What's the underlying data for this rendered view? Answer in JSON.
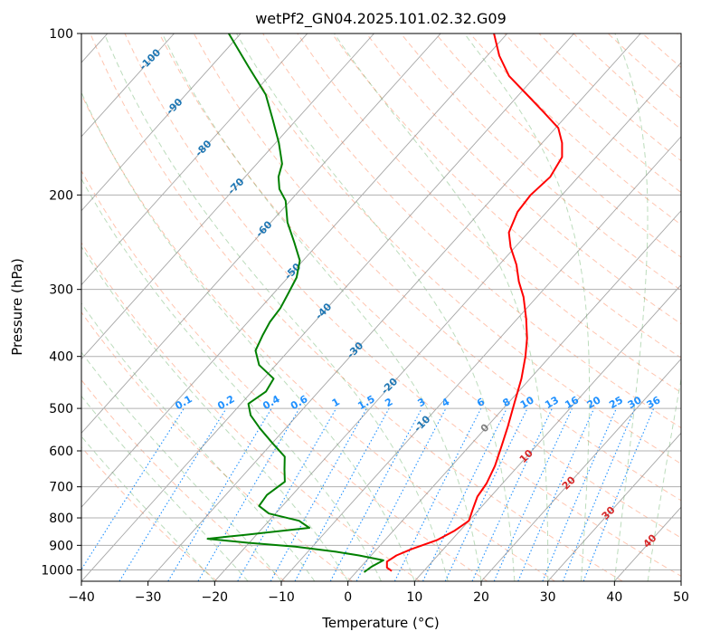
{
  "chart_data": {
    "type": "line",
    "subtype": "skew-t log-p",
    "title": "wetPf2_GN04.2025.101.02.32.G09",
    "xlabel": "Temperature (°C)",
    "ylabel": "Pressure (hPa)",
    "xlim": [
      -40,
      50
    ],
    "ylim": [
      1050,
      100
    ],
    "y_scale": "log",
    "grid": true,
    "x_ticks": [
      "−40",
      "−30",
      "−20",
      "−10",
      "0",
      "10",
      "20",
      "30",
      "40",
      "50"
    ],
    "y_ticks": [
      "100",
      "200",
      "300",
      "400",
      "500",
      "600",
      "700",
      "800",
      "900",
      "1000"
    ],
    "x_tick_values": [
      -40,
      -30,
      -20,
      -10,
      0,
      10,
      20,
      30,
      40,
      50
    ],
    "y_tick_values": [
      100,
      200,
      300,
      400,
      500,
      600,
      700,
      800,
      900,
      1000
    ],
    "colors": {
      "temperature": "#ff0000",
      "dewpoint": "#008000",
      "dry_adiabat": "#ff7f50",
      "moist_adiabat": "#228b22",
      "mixing_ratio": "#1e90ff",
      "isotherm": "#808080",
      "isotherm_label_cold": "#1f77b4",
      "isotherm_label_warm": "#d62728",
      "zero_isotherm_label": "#7f7f7f",
      "mixing_label": "#1e90ff"
    },
    "series": [
      {
        "key": "temperature",
        "points": [
          [
            1005,
            5.2
          ],
          [
            990,
            4.0
          ],
          [
            965,
            3.2
          ],
          [
            940,
            3.8
          ],
          [
            915,
            5.2
          ],
          [
            880,
            7.8
          ],
          [
            845,
            9.2
          ],
          [
            810,
            10.0
          ],
          [
            770,
            9.0
          ],
          [
            730,
            8.0
          ],
          [
            690,
            7.6
          ],
          [
            640,
            6.5
          ],
          [
            590,
            4.9
          ],
          [
            540,
            3.1
          ],
          [
            490,
            1.0
          ],
          [
            440,
            -1.3
          ],
          [
            400,
            -3.7
          ],
          [
            370,
            -5.9
          ],
          [
            340,
            -8.7
          ],
          [
            310,
            -12.0
          ],
          [
            290,
            -14.8
          ],
          [
            270,
            -17.4
          ],
          [
            250,
            -20.7
          ],
          [
            235,
            -22.9
          ],
          [
            215,
            -24.4
          ],
          [
            200,
            -24.7
          ],
          [
            185,
            -24.2
          ],
          [
            170,
            -25.1
          ],
          [
            160,
            -27.0
          ],
          [
            150,
            -29.6
          ],
          [
            140,
            -34.0
          ],
          [
            130,
            -38.8
          ],
          [
            120,
            -44.0
          ],
          [
            110,
            -48.2
          ],
          [
            100,
            -52.0
          ]
        ]
      },
      {
        "key": "dewpoint",
        "points": [
          [
            1010,
            1.2
          ],
          [
            985,
            1.6
          ],
          [
            960,
            2.5
          ],
          [
            940,
            -1.8
          ],
          [
            925,
            -5.8
          ],
          [
            905,
            -12.6
          ],
          [
            890,
            -20.2
          ],
          [
            875,
            -26.8
          ],
          [
            860,
            -21.5
          ],
          [
            835,
            -13.0
          ],
          [
            810,
            -15.5
          ],
          [
            785,
            -21.0
          ],
          [
            760,
            -23.5
          ],
          [
            725,
            -23.8
          ],
          [
            685,
            -22.9
          ],
          [
            650,
            -24.6
          ],
          [
            615,
            -26.3
          ],
          [
            580,
            -30.0
          ],
          [
            545,
            -33.8
          ],
          [
            515,
            -37.0
          ],
          [
            490,
            -38.9
          ],
          [
            465,
            -37.9
          ],
          [
            440,
            -38.5
          ],
          [
            415,
            -42.5
          ],
          [
            390,
            -45.0
          ],
          [
            365,
            -46.0
          ],
          [
            345,
            -46.7
          ],
          [
            325,
            -47.0
          ],
          [
            305,
            -47.8
          ],
          [
            285,
            -48.7
          ],
          [
            265,
            -50.5
          ],
          [
            245,
            -53.8
          ],
          [
            225,
            -57.5
          ],
          [
            205,
            -60.7
          ],
          [
            195,
            -63.2
          ],
          [
            185,
            -65.0
          ],
          [
            175,
            -66.2
          ],
          [
            160,
            -69.5
          ],
          [
            145,
            -73.5
          ],
          [
            130,
            -78.0
          ],
          [
            115,
            -84.5
          ],
          [
            100,
            -91.8
          ]
        ]
      }
    ],
    "isotherm_labels": [
      "-100",
      "-90",
      "-80",
      "-70",
      "-60",
      "-50",
      "-40",
      "-30",
      "-20",
      "-10",
      "0",
      "10",
      "20",
      "30",
      "40"
    ],
    "isotherm_label_values": [
      -100,
      -90,
      -80,
      -70,
      -60,
      -50,
      -40,
      -30,
      -20,
      -10,
      0,
      10,
      20,
      30,
      40
    ],
    "mixing_ratio_labels": [
      "0.1",
      "0.2",
      "0.4",
      "0.6",
      "1",
      "1.5",
      "2",
      "3",
      "4",
      "6",
      "8",
      "10",
      "13",
      "16",
      "20",
      "25",
      "30",
      "36"
    ],
    "mixing_ratio_values": [
      0.1,
      0.2,
      0.4,
      0.6,
      1,
      1.5,
      2,
      3,
      4,
      6,
      8,
      10,
      13,
      16,
      20,
      25,
      30,
      36
    ],
    "mixing_ratio_label_pressure": 500
  }
}
